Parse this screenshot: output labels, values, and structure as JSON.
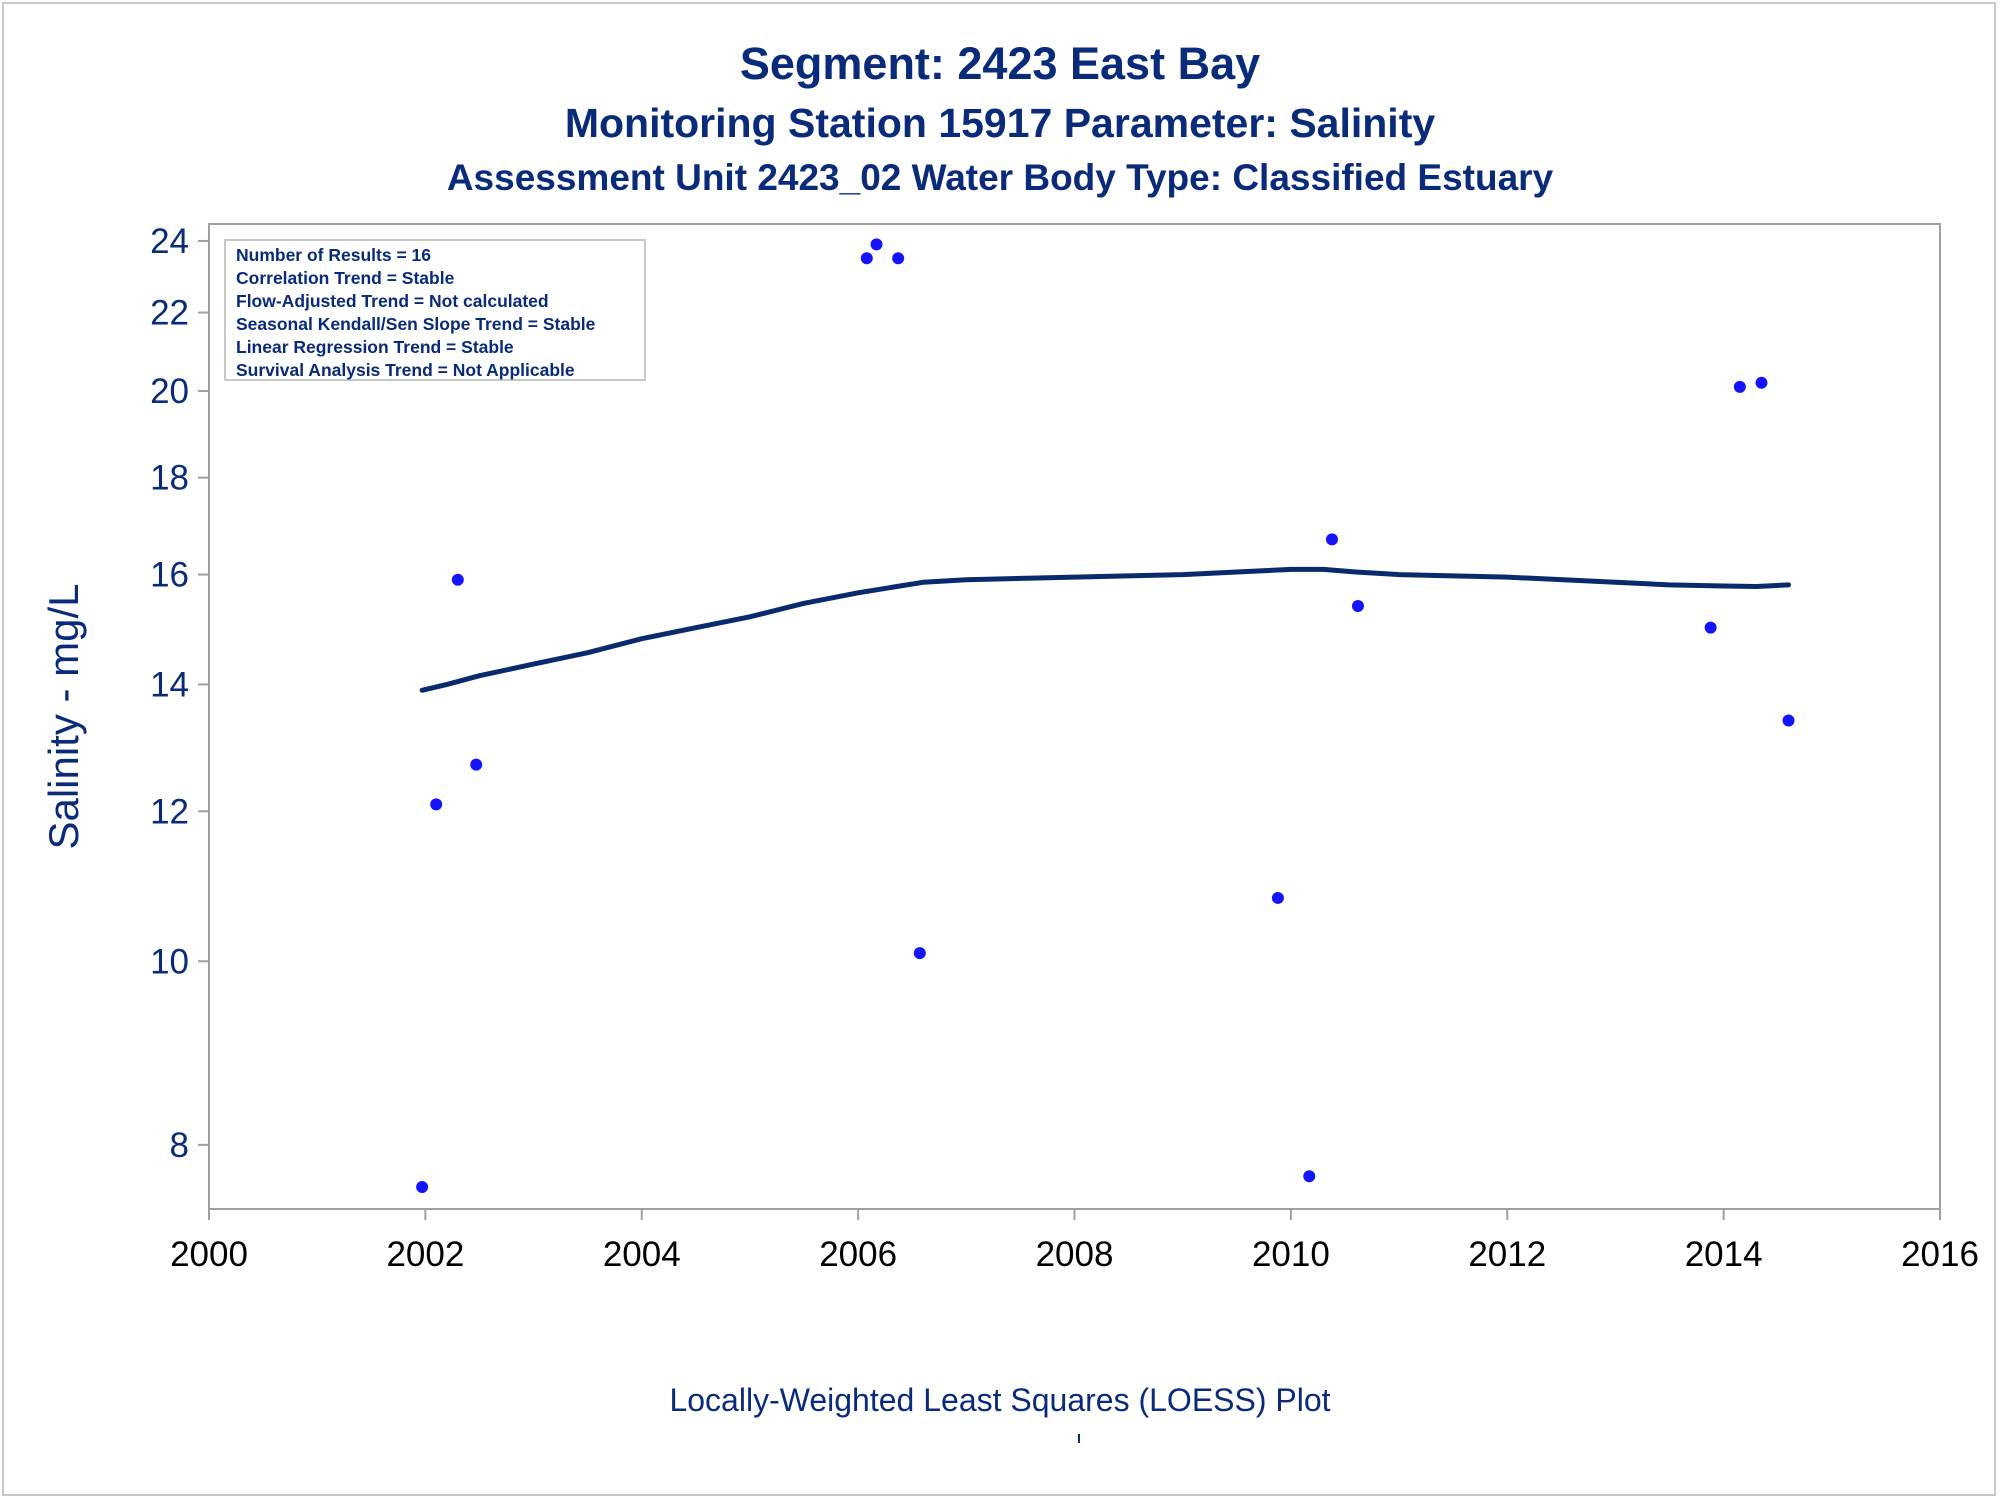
{
  "titles": {
    "line1": "Segment: 2423  East Bay",
    "line2": "Monitoring Station 15917 Parameter: Salinity",
    "line3": "Assessment Unit 2423_02   Water Body Type: Classified Estuary"
  },
  "stats_box": {
    "lines": [
      "Number of Results = 16",
      "Correlation Trend = Stable",
      "Flow-Adjusted Trend = Not calculated",
      "Seasonal Kendall/Sen Slope Trend = Stable",
      "Linear Regression Trend = Stable",
      "Survival Analysis Trend = Not Applicable"
    ]
  },
  "footnote": "Locally-Weighted Least Squares (LOESS) Plot",
  "chart_data": {
    "type": "scatter",
    "ylabel": "Salinity - mg/L",
    "xlabel": "",
    "y_scale": "log",
    "xlim": [
      2000,
      2016
    ],
    "ylim": [
      7.4,
      24.5
    ],
    "x_ticks": [
      2000,
      2002,
      2004,
      2006,
      2008,
      2010,
      2012,
      2014,
      2016
    ],
    "y_ticks": [
      8,
      10,
      12,
      14,
      16,
      18,
      20,
      22,
      24
    ],
    "grid": false,
    "colors": {
      "points": "#1414ff",
      "line": "#0a2a6e",
      "text": "#0a2a7a",
      "axis": "#a0a0a0"
    },
    "series": [
      {
        "type": "scatter",
        "points": [
          [
            2001.97,
            7.6
          ],
          [
            2002.1,
            12.1
          ],
          [
            2002.3,
            15.9
          ],
          [
            2002.47,
            12.7
          ],
          [
            2006.08,
            23.5
          ],
          [
            2006.17,
            23.9
          ],
          [
            2006.37,
            23.5
          ],
          [
            2006.57,
            10.1
          ],
          [
            2009.88,
            10.8
          ],
          [
            2010.17,
            7.7
          ],
          [
            2010.38,
            16.7
          ],
          [
            2010.62,
            15.4
          ],
          [
            2013.88,
            15.0
          ],
          [
            2014.15,
            20.1
          ],
          [
            2014.35,
            20.2
          ],
          [
            2014.6,
            13.4
          ]
        ]
      },
      {
        "type": "line",
        "points": [
          [
            2001.97,
            13.9
          ],
          [
            2002.2,
            14.0
          ],
          [
            2002.5,
            14.15
          ],
          [
            2003.0,
            14.35
          ],
          [
            2003.5,
            14.55
          ],
          [
            2004.0,
            14.8
          ],
          [
            2004.5,
            15.0
          ],
          [
            2005.0,
            15.2
          ],
          [
            2005.5,
            15.45
          ],
          [
            2006.0,
            15.65
          ],
          [
            2006.3,
            15.75
          ],
          [
            2006.6,
            15.85
          ],
          [
            2007.0,
            15.9
          ],
          [
            2008.0,
            15.95
          ],
          [
            2009.0,
            16.0
          ],
          [
            2009.5,
            16.05
          ],
          [
            2010.0,
            16.1
          ],
          [
            2010.3,
            16.1
          ],
          [
            2010.6,
            16.05
          ],
          [
            2011.0,
            16.0
          ],
          [
            2012.0,
            15.95
          ],
          [
            2013.0,
            15.85
          ],
          [
            2013.5,
            15.8
          ],
          [
            2014.0,
            15.78
          ],
          [
            2014.3,
            15.77
          ],
          [
            2014.6,
            15.8
          ]
        ]
      }
    ]
  }
}
